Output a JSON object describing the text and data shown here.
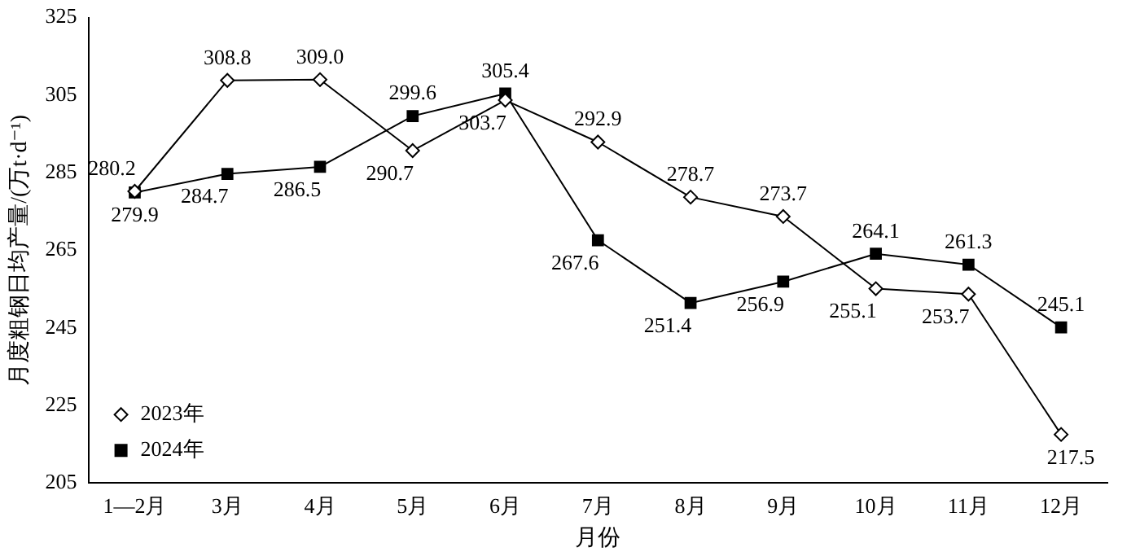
{
  "chart_data": {
    "type": "line",
    "xlabel": "月份",
    "ylabel": "月度粗钢日均产量/(万t·d⁻¹)",
    "categories": [
      "1—2月",
      "3月",
      "4月",
      "5月",
      "6月",
      "7月",
      "8月",
      "9月",
      "10月",
      "11月",
      "12月"
    ],
    "series": [
      {
        "name": "2023年",
        "color": "#000000",
        "marker": "diamond",
        "value_labels": [
          "280.2",
          "308.8",
          "309.0",
          "290.7",
          "303.7",
          "292.9",
          "278.7",
          "273.7",
          "255.1",
          "253.7",
          "217.5"
        ],
        "values": [
          280.2,
          308.8,
          309.0,
          290.7,
          303.7,
          292.9,
          278.7,
          273.7,
          255.1,
          253.7,
          217.5
        ]
      },
      {
        "name": "2024年",
        "color": "#000000",
        "marker": "square",
        "value_labels": [
          "279.9",
          "284.7",
          "286.5",
          "299.6",
          "305.4",
          "267.6",
          "251.4",
          "256.9",
          "264.1",
          "261.3",
          "245.1"
        ],
        "values": [
          279.9,
          284.7,
          286.5,
          299.6,
          305.4,
          267.6,
          251.4,
          256.9,
          264.1,
          261.3,
          245.1
        ]
      }
    ],
    "ylim": [
      205,
      325
    ],
    "yticks": [
      205,
      225,
      245,
      265,
      285,
      305,
      325
    ],
    "grid": false,
    "legend": "bottom left"
  }
}
